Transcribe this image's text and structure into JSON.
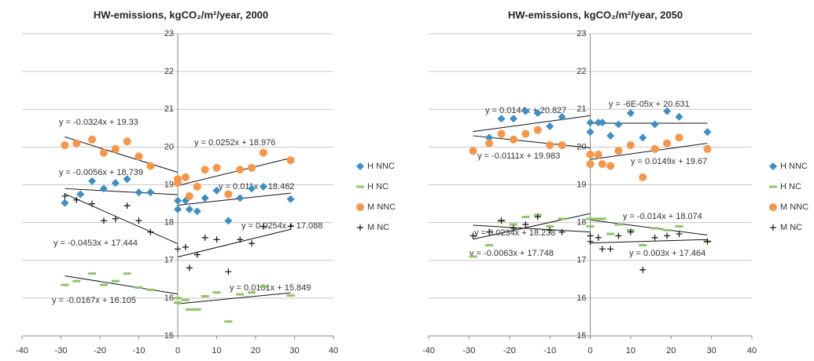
{
  "chart_data": [
    {
      "type": "scatter",
      "title": "HW-emissions, kgCO₂/m²/year, 2000",
      "xlim": [
        -40,
        40
      ],
      "xticks": [
        -40,
        -30,
        -20,
        -10,
        0,
        10,
        20,
        30,
        40
      ],
      "ylim": [
        15,
        23
      ],
      "yticks": [
        15,
        16,
        17,
        18,
        19,
        20,
        21,
        22,
        23
      ],
      "grid": true,
      "series": [
        {
          "name": "H NNC",
          "color": "#3a8fc7",
          "marker": "diamond",
          "x": [
            -29,
            -25,
            -22,
            -19,
            -16,
            -13,
            -10,
            -7,
            0,
            0,
            2,
            3,
            5,
            7,
            10,
            13,
            16,
            19,
            22,
            29
          ],
          "values": [
            18.52,
            18.75,
            19.1,
            18.9,
            19.05,
            19.15,
            18.8,
            18.8,
            18.35,
            18.58,
            18.58,
            18.35,
            18.3,
            18.65,
            18.85,
            18.05,
            18.65,
            18.9,
            18.95,
            18.62
          ]
        },
        {
          "name": "H NC",
          "color": "#8cc665",
          "marker": "dash",
          "x": [
            -29,
            -26,
            -22,
            -19,
            -16,
            -13,
            -10,
            -7,
            0,
            0,
            2,
            3,
            5,
            7,
            10,
            13,
            16,
            19,
            22,
            29
          ],
          "values": [
            16.35,
            16.45,
            16.65,
            16.35,
            16.45,
            16.65,
            16.28,
            16.22,
            15.88,
            16.0,
            15.95,
            15.7,
            15.7,
            16.05,
            16.15,
            15.38,
            16.1,
            16.15,
            16.3,
            16.07
          ]
        },
        {
          "name": "M NNC",
          "color": "#f79646",
          "marker": "circle",
          "x": [
            -29,
            -26,
            -22,
            -19,
            -16,
            -13,
            -10,
            -7,
            0,
            0,
            2,
            3,
            5,
            7,
            10,
            13,
            16,
            19,
            22,
            29
          ],
          "values": [
            20.05,
            20.1,
            20.2,
            19.85,
            19.95,
            20.15,
            19.75,
            19.5,
            19.15,
            19.05,
            19.2,
            18.7,
            18.95,
            19.4,
            19.45,
            18.75,
            19.4,
            19.45,
            19.85,
            19.65
          ]
        },
        {
          "name": "M NC",
          "color": "#111111",
          "marker": "plus",
          "x": [
            -29,
            -26,
            -22,
            -19,
            -16,
            -13,
            -10,
            -7,
            0,
            2,
            3,
            5,
            7,
            10,
            13,
            16,
            19,
            22,
            29
          ],
          "values": [
            18.7,
            18.6,
            18.5,
            18.05,
            18.1,
            18.45,
            18.05,
            17.75,
            17.3,
            17.35,
            16.8,
            17.15,
            17.6,
            17.55,
            16.7,
            17.55,
            17.45,
            17.9,
            17.9
          ]
        }
      ],
      "trendlines": [
        {
          "label": "y = -0.0324x + 19.33",
          "x": [
            -29,
            0
          ],
          "y": [
            20.27,
            19.33
          ]
        },
        {
          "label": "y = 0.0252x + 18.976",
          "x": [
            0,
            29
          ],
          "y": [
            18.98,
            19.71
          ]
        },
        {
          "label": "y = -0.0056x + 18.739",
          "x": [
            -29,
            0
          ],
          "y": [
            18.9,
            18.74
          ]
        },
        {
          "label": "y = 0.011x + 18.462",
          "x": [
            0,
            29
          ],
          "y": [
            18.46,
            18.78
          ]
        },
        {
          "label": "y = -0.0453x + 17.444",
          "x": [
            -29,
            0
          ],
          "y": [
            18.76,
            17.44
          ]
        },
        {
          "label": "y = 0.0254x + 17.088",
          "x": [
            0,
            29
          ],
          "y": [
            17.09,
            17.82
          ]
        },
        {
          "label": "y = 0.0101x + 15.849",
          "x": [
            0,
            29
          ],
          "y": [
            15.85,
            16.14
          ]
        },
        {
          "label": "y = -0.0167x + 16.105",
          "x": [
            -29,
            0
          ],
          "y": [
            16.59,
            16.11
          ]
        }
      ]
    },
    {
      "type": "scatter",
      "title": "HW-emissions, kgCO₂/m²/year, 2050",
      "xlim": [
        -40,
        40
      ],
      "xticks": [
        -40,
        -30,
        -20,
        -10,
        0,
        10,
        20,
        30,
        40
      ],
      "ylim": [
        15,
        23
      ],
      "yticks": [
        15,
        16,
        17,
        18,
        19,
        20,
        21,
        22,
        23
      ],
      "grid": true,
      "series": [
        {
          "name": "H NNC",
          "color": "#3a8fc7",
          "marker": "diamond",
          "x": [
            -25,
            -22,
            -19,
            -16,
            -13,
            -10,
            -7,
            0,
            0,
            2,
            3,
            5,
            7,
            10,
            13,
            16,
            19,
            22,
            29
          ],
          "values": [
            20.25,
            20.75,
            20.75,
            20.95,
            20.9,
            20.55,
            20.8,
            20.65,
            20.4,
            20.65,
            20.65,
            20.3,
            20.6,
            20.9,
            20.25,
            20.6,
            20.95,
            20.8,
            20.4
          ]
        },
        {
          "name": "H NC",
          "color": "#8cc665",
          "marker": "dash",
          "x": [
            -29,
            -25,
            -22,
            -19,
            -16,
            -13,
            -10,
            -7,
            0,
            0,
            2,
            3,
            5,
            7,
            10,
            13,
            16,
            19,
            22,
            29
          ],
          "values": [
            17.1,
            17.4,
            18.05,
            17.95,
            18.15,
            18.2,
            17.9,
            18.1,
            18.1,
            17.9,
            18.1,
            18.1,
            17.7,
            17.95,
            17.8,
            17.4,
            17.85,
            17.8,
            17.9,
            17.5
          ]
        },
        {
          "name": "M NNC",
          "color": "#f79646",
          "marker": "circle",
          "x": [
            -29,
            -25,
            -22,
            -19,
            -16,
            -13,
            -10,
            -7,
            0,
            0,
            2,
            3,
            5,
            7,
            10,
            13,
            16,
            19,
            22,
            29
          ],
          "values": [
            19.9,
            20.1,
            20.35,
            20.2,
            20.35,
            20.45,
            20.05,
            20.05,
            19.8,
            19.55,
            19.8,
            19.55,
            19.5,
            19.9,
            20.05,
            19.2,
            19.95,
            20.1,
            20.25,
            19.95
          ]
        },
        {
          "name": "M NC",
          "color": "#111111",
          "marker": "plus",
          "x": [
            -29,
            -25,
            -22,
            -19,
            -16,
            -13,
            -10,
            -7,
            0,
            0,
            2,
            3,
            5,
            7,
            10,
            13,
            16,
            19,
            22,
            29
          ],
          "values": [
            17.65,
            17.75,
            18.05,
            17.85,
            17.95,
            18.15,
            17.8,
            17.75,
            17.5,
            17.65,
            17.6,
            17.3,
            17.3,
            17.65,
            17.75,
            16.75,
            17.6,
            17.65,
            17.7,
            17.5
          ]
        }
      ],
      "trendlines": [
        {
          "label": "y = 0.0144x + 20.827",
          "x": [
            -29,
            0
          ],
          "y": [
            20.41,
            20.83
          ]
        },
        {
          "label": "y = -6E-05x + 20.631",
          "x": [
            0,
            29
          ],
          "y": [
            20.63,
            20.63
          ]
        },
        {
          "label": "y = -0.0111x + 19.983",
          "x": [
            -29,
            0
          ],
          "y": [
            20.3,
            19.98
          ]
        },
        {
          "label": "y = 0.0149x + 19.67",
          "x": [
            0,
            29
          ],
          "y": [
            19.67,
            20.1
          ]
        },
        {
          "label": "y = 0.0234x + 18.238",
          "x": [
            -29,
            0
          ],
          "y": [
            17.56,
            18.24
          ]
        },
        {
          "label": "y = -0.014x + 18.074",
          "x": [
            0,
            29
          ],
          "y": [
            18.07,
            17.67
          ]
        },
        {
          "label": "y = -0.0063x + 17.748",
          "x": [
            -29,
            0
          ],
          "y": [
            17.93,
            17.75
          ]
        },
        {
          "label": "y = 0.003x + 17.464",
          "x": [
            0,
            29
          ],
          "y": [
            17.46,
            17.55
          ]
        }
      ]
    }
  ]
}
